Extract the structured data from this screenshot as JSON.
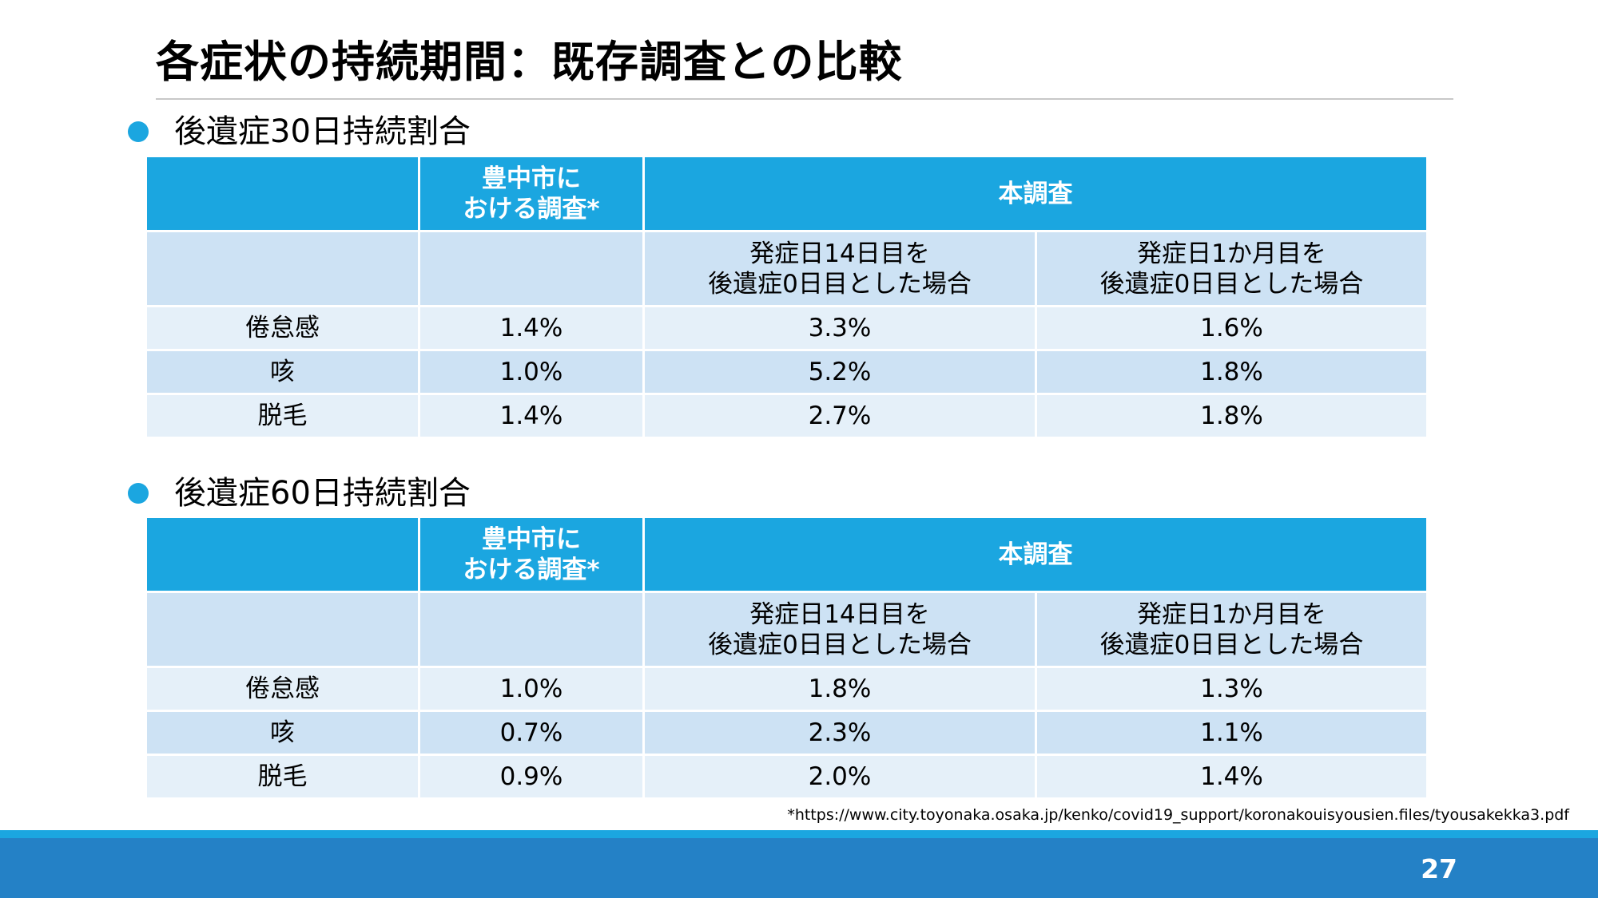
{
  "slide": {
    "title": "各症状の持続期間：既存調査との比較",
    "page_number": "27",
    "footnote": "*https://www.city.toyonaka.osaka.jp/kenko/covid19_support/koronakouisyousien.files/tyousakekka3.pdf",
    "colors": {
      "header": "#1ba6e0",
      "row_light": "#e5f0f9",
      "row_dark": "#cde2f4",
      "footer_bar": "#2481c6"
    }
  },
  "tables": [
    {
      "heading": "後遺症30日持続割合",
      "header": {
        "toyonaka_line1": "豊中市に",
        "toyonaka_line2": "おける調査*",
        "this_study": "本調査"
      },
      "subheader": {
        "col14_line1": "発症日14日目を",
        "col14_line2": "後遺症0日目とした場合",
        "col1m_line1": "発症日1か月目を",
        "col1m_line2": "後遺症0日目とした場合"
      },
      "rows": [
        {
          "symptom": "倦怠感",
          "toyonaka": "1.4%",
          "day14": "3.3%",
          "month1": "1.6%"
        },
        {
          "symptom": "咳",
          "toyonaka": "1.0%",
          "day14": "5.2%",
          "month1": "1.8%"
        },
        {
          "symptom": "脱毛",
          "toyonaka": "1.4%",
          "day14": "2.7%",
          "month1": "1.8%"
        }
      ]
    },
    {
      "heading": "後遺症60日持続割合",
      "header": {
        "toyonaka_line1": "豊中市に",
        "toyonaka_line2": "おける調査*",
        "this_study": "本調査"
      },
      "subheader": {
        "col14_line1": "発症日14日目を",
        "col14_line2": "後遺症0日目とした場合",
        "col1m_line1": "発症日1か月目を",
        "col1m_line2": "後遺症0日目とした場合"
      },
      "rows": [
        {
          "symptom": "倦怠感",
          "toyonaka": "1.0%",
          "day14": "1.8%",
          "month1": "1.3%"
        },
        {
          "symptom": "咳",
          "toyonaka": "0.7%",
          "day14": "2.3%",
          "month1": "1.1%"
        },
        {
          "symptom": "脱毛",
          "toyonaka": "0.9%",
          "day14": "2.0%",
          "month1": "1.4%"
        }
      ]
    }
  ]
}
